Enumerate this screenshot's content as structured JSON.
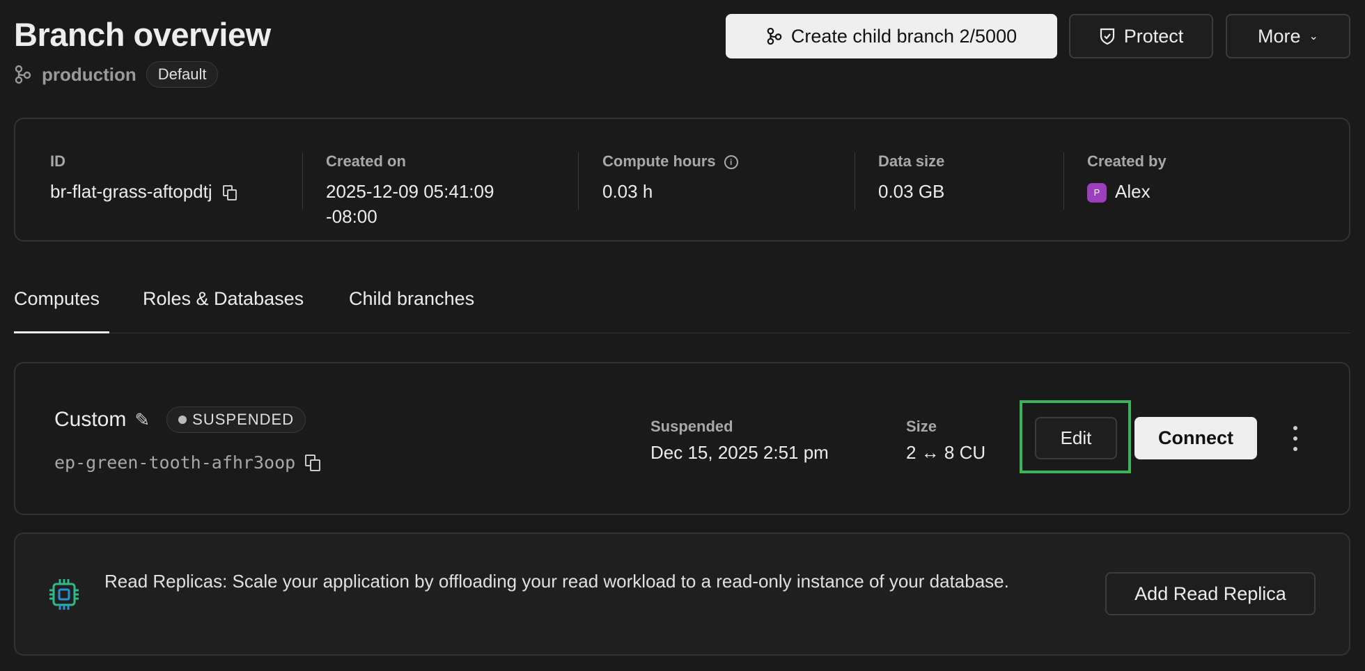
{
  "header": {
    "title": "Branch overview",
    "branch_name": "production",
    "branch_badge": "Default",
    "create_child_label": "Create child branch 2/5000",
    "protect_label": "Protect",
    "more_label": "More"
  },
  "info": {
    "id_label": "ID",
    "id_value": "br-flat-grass-aftopdtj",
    "created_on_label": "Created on",
    "created_on_line1": "2025-12-09 05:41:09",
    "created_on_line2": "-08:00",
    "compute_hours_label": "Compute hours",
    "compute_hours_value": "0.03 h",
    "data_size_label": "Data size",
    "data_size_value": "0.03 GB",
    "created_by_label": "Created by",
    "created_by_avatar": "P",
    "created_by_value": "Alex"
  },
  "tabs": [
    {
      "label": "Computes",
      "active": true
    },
    {
      "label": "Roles & Databases"
    },
    {
      "label": "Child branches"
    }
  ],
  "compute": {
    "name": "Custom",
    "status": "SUSPENDED",
    "endpoint": "ep-green-tooth-afhr3oop",
    "suspended_label": "Suspended",
    "suspended_value": "Dec 15, 2025 2:51 pm",
    "size_label": "Size",
    "size_value": "2 ↔ 8 CU",
    "edit_label": "Edit",
    "connect_label": "Connect",
    "highlight_color": "#3cb35a"
  },
  "replicas": {
    "text": "Read Replicas: Scale your application by offloading your read workload to a read-only instance of your database.",
    "button_label": "Add Read Replica"
  }
}
